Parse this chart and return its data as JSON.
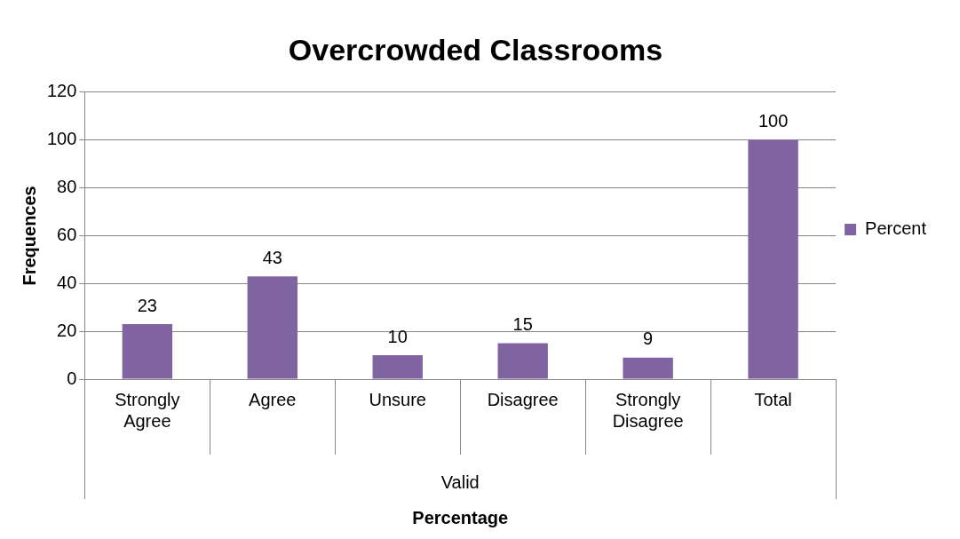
{
  "chart_data": {
    "type": "bar",
    "title": "Overcrowded Classrooms",
    "xlabel": "Percentage",
    "ylabel": "Frequences",
    "categories": [
      "Strongly Agree",
      "Agree",
      "Unsure",
      "Disagree",
      "Strongly Disagree",
      "Total"
    ],
    "series": [
      {
        "name": "Percent",
        "color": "#8064a2",
        "values": [
          23,
          43,
          10,
          15,
          9,
          100
        ]
      }
    ],
    "ylim": [
      0,
      120
    ],
    "yticks": [
      0,
      20,
      40,
      60,
      80,
      100,
      120
    ],
    "grid": "y",
    "legend": "right",
    "data_labels": true,
    "annotations": [
      "Valid"
    ]
  }
}
